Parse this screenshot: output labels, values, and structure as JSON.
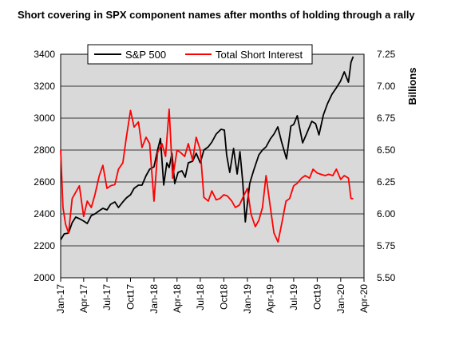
{
  "chart_data": {
    "type": "line",
    "title": "Short covering in SPX component names after months of holding through a rally",
    "y_right_label": "Billions",
    "x_tick_labels": [
      "Jan-17",
      "Apr-17",
      "Jul-17",
      "Oct17",
      "Jan-18",
      "Apr-18",
      "Jul-18",
      "Oct18",
      "Jan-19",
      "Apr-19",
      "Jul-19",
      "Oct19",
      "Jan-20",
      "Apr-20"
    ],
    "x_tick_dates": [
      "2017-01",
      "2017-04",
      "2017-07",
      "2017-10",
      "2018-01",
      "2018-04",
      "2018-07",
      "2018-10",
      "2019-01",
      "2019-04",
      "2019-07",
      "2019-10",
      "2020-01",
      "2020-04"
    ],
    "y_left": {
      "min": 2000,
      "max": 3400,
      "ticks": [
        "2000",
        "2200",
        "2400",
        "2600",
        "2800",
        "3000",
        "3200",
        "3400"
      ]
    },
    "y_right": {
      "min": 5.5,
      "max": 7.25,
      "ticks": [
        "5.50",
        "5.75",
        "6.00",
        "6.25",
        "6.50",
        "6.75",
        "7.00",
        "7.25"
      ]
    },
    "grid": true,
    "legend": {
      "placement": "top-left"
    },
    "series": [
      {
        "name": "S&P 500",
        "color": "#000000",
        "axis": "left",
        "points": [
          [
            "2017-01-01",
            2238
          ],
          [
            "2017-01-15",
            2275
          ],
          [
            "2017-02-01",
            2280
          ],
          [
            "2017-02-15",
            2345
          ],
          [
            "2017-03-01",
            2380
          ],
          [
            "2017-03-15",
            2370
          ],
          [
            "2017-04-01",
            2355
          ],
          [
            "2017-04-15",
            2340
          ],
          [
            "2017-05-01",
            2390
          ],
          [
            "2017-05-15",
            2400
          ],
          [
            "2017-06-01",
            2420
          ],
          [
            "2017-06-15",
            2435
          ],
          [
            "2017-07-01",
            2425
          ],
          [
            "2017-07-15",
            2460
          ],
          [
            "2017-08-01",
            2475
          ],
          [
            "2017-08-15",
            2440
          ],
          [
            "2017-09-01",
            2475
          ],
          [
            "2017-09-15",
            2500
          ],
          [
            "2017-10-01",
            2520
          ],
          [
            "2017-10-15",
            2560
          ],
          [
            "2017-11-01",
            2580
          ],
          [
            "2017-11-15",
            2580
          ],
          [
            "2017-12-01",
            2640
          ],
          [
            "2017-12-15",
            2680
          ],
          [
            "2018-01-01",
            2695
          ],
          [
            "2018-01-15",
            2800
          ],
          [
            "2018-01-26",
            2872
          ],
          [
            "2018-02-08",
            2581
          ],
          [
            "2018-02-20",
            2720
          ],
          [
            "2018-03-01",
            2690
          ],
          [
            "2018-03-12",
            2780
          ],
          [
            "2018-03-23",
            2590
          ],
          [
            "2018-04-05",
            2660
          ],
          [
            "2018-04-20",
            2670
          ],
          [
            "2018-05-03",
            2630
          ],
          [
            "2018-05-15",
            2720
          ],
          [
            "2018-06-01",
            2730
          ],
          [
            "2018-06-15",
            2780
          ],
          [
            "2018-07-01",
            2720
          ],
          [
            "2018-07-15",
            2800
          ],
          [
            "2018-08-01",
            2820
          ],
          [
            "2018-08-15",
            2850
          ],
          [
            "2018-09-01",
            2900
          ],
          [
            "2018-09-20",
            2930
          ],
          [
            "2018-10-03",
            2925
          ],
          [
            "2018-10-12",
            2770
          ],
          [
            "2018-10-24",
            2660
          ],
          [
            "2018-11-08",
            2810
          ],
          [
            "2018-11-22",
            2650
          ],
          [
            "2018-12-03",
            2790
          ],
          [
            "2018-12-14",
            2600
          ],
          [
            "2018-12-24",
            2350
          ],
          [
            "2019-01-10",
            2590
          ],
          [
            "2019-01-25",
            2670
          ],
          [
            "2019-02-15",
            2770
          ],
          [
            "2019-03-01",
            2800
          ],
          [
            "2019-03-15",
            2820
          ],
          [
            "2019-04-01",
            2870
          ],
          [
            "2019-04-15",
            2900
          ],
          [
            "2019-04-30",
            2945
          ],
          [
            "2019-05-15",
            2850
          ],
          [
            "2019-06-03",
            2745
          ],
          [
            "2019-06-20",
            2950
          ],
          [
            "2019-07-01",
            2960
          ],
          [
            "2019-07-15",
            3015
          ],
          [
            "2019-08-05",
            2845
          ],
          [
            "2019-08-20",
            2900
          ],
          [
            "2019-09-10",
            2980
          ],
          [
            "2019-09-25",
            2965
          ],
          [
            "2019-10-08",
            2895
          ],
          [
            "2019-10-25",
            3020
          ],
          [
            "2019-11-10",
            3090
          ],
          [
            "2019-11-28",
            3150
          ],
          [
            "2019-12-15",
            3190
          ],
          [
            "2019-12-31",
            3231
          ],
          [
            "2020-01-15",
            3290
          ],
          [
            "2020-01-31",
            3225
          ],
          [
            "2020-02-10",
            3350
          ],
          [
            "2020-02-19",
            3386
          ]
        ]
      },
      {
        "name": "Total Short Interest",
        "color": "#ff0000",
        "axis": "right",
        "points": [
          [
            "2017-01-01",
            6.5
          ],
          [
            "2017-01-10",
            6.05
          ],
          [
            "2017-01-20",
            5.92
          ],
          [
            "2017-02-01",
            5.85
          ],
          [
            "2017-02-15",
            6.12
          ],
          [
            "2017-03-01",
            6.17
          ],
          [
            "2017-03-15",
            6.22
          ],
          [
            "2017-04-01",
            5.98
          ],
          [
            "2017-04-15",
            6.1
          ],
          [
            "2017-05-01",
            6.05
          ],
          [
            "2017-05-15",
            6.15
          ],
          [
            "2017-06-01",
            6.3
          ],
          [
            "2017-06-15",
            6.38
          ],
          [
            "2017-07-01",
            6.2
          ],
          [
            "2017-07-15",
            6.22
          ],
          [
            "2017-08-01",
            6.23
          ],
          [
            "2017-08-15",
            6.35
          ],
          [
            "2017-09-01",
            6.4
          ],
          [
            "2017-09-15",
            6.6
          ],
          [
            "2017-10-01",
            6.81
          ],
          [
            "2017-10-15",
            6.68
          ],
          [
            "2017-11-01",
            6.72
          ],
          [
            "2017-11-15",
            6.52
          ],
          [
            "2017-12-01",
            6.6
          ],
          [
            "2017-12-15",
            6.55
          ],
          [
            "2018-01-01",
            6.1
          ],
          [
            "2018-01-15",
            6.48
          ],
          [
            "2018-02-01",
            6.55
          ],
          [
            "2018-02-15",
            6.45
          ],
          [
            "2018-03-01",
            6.82
          ],
          [
            "2018-03-15",
            6.28
          ],
          [
            "2018-04-01",
            6.5
          ],
          [
            "2018-04-15",
            6.48
          ],
          [
            "2018-05-01",
            6.45
          ],
          [
            "2018-05-15",
            6.55
          ],
          [
            "2018-06-01",
            6.42
          ],
          [
            "2018-06-15",
            6.6
          ],
          [
            "2018-07-01",
            6.5
          ],
          [
            "2018-07-15",
            6.13
          ],
          [
            "2018-08-01",
            6.1
          ],
          [
            "2018-08-15",
            6.18
          ],
          [
            "2018-09-01",
            6.11
          ],
          [
            "2018-09-15",
            6.12
          ],
          [
            "2018-10-01",
            6.15
          ],
          [
            "2018-10-15",
            6.14
          ],
          [
            "2018-11-01",
            6.1
          ],
          [
            "2018-11-15",
            6.05
          ],
          [
            "2018-12-01",
            6.07
          ],
          [
            "2018-12-15",
            6.13
          ],
          [
            "2019-01-01",
            6.2
          ],
          [
            "2019-01-15",
            6.0
          ],
          [
            "2019-02-01",
            5.9
          ],
          [
            "2019-02-15",
            5.95
          ],
          [
            "2019-03-01",
            6.05
          ],
          [
            "2019-03-15",
            6.3
          ],
          [
            "2019-04-01",
            6.05
          ],
          [
            "2019-04-15",
            5.85
          ],
          [
            "2019-05-01",
            5.78
          ],
          [
            "2019-05-15",
            5.92
          ],
          [
            "2019-06-01",
            6.1
          ],
          [
            "2019-06-15",
            6.12
          ],
          [
            "2019-07-01",
            6.22
          ],
          [
            "2019-07-15",
            6.24
          ],
          [
            "2019-08-01",
            6.28
          ],
          [
            "2019-08-15",
            6.3
          ],
          [
            "2019-09-01",
            6.28
          ],
          [
            "2019-09-15",
            6.35
          ],
          [
            "2019-10-01",
            6.32
          ],
          [
            "2019-10-15",
            6.31
          ],
          [
            "2019-11-01",
            6.3
          ],
          [
            "2019-11-15",
            6.31
          ],
          [
            "2019-12-01",
            6.3
          ],
          [
            "2019-12-15",
            6.35
          ],
          [
            "2020-01-01",
            6.27
          ],
          [
            "2020-01-15",
            6.3
          ],
          [
            "2020-01-31",
            6.28
          ],
          [
            "2020-02-10",
            6.12
          ],
          [
            "2020-02-19",
            6.12
          ]
        ]
      }
    ]
  }
}
